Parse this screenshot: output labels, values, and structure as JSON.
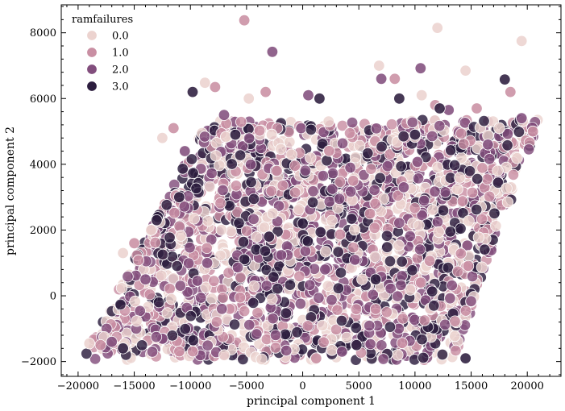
{
  "chart_data": {
    "type": "scatter",
    "xlabel": "principal component 1",
    "ylabel": "principal component 2",
    "xlim": [
      -21500,
      23000
    ],
    "ylim": [
      -2450,
      8850
    ],
    "x_ticks": [
      -20000,
      -15000,
      -10000,
      -5000,
      0,
      5000,
      10000,
      15000,
      20000
    ],
    "x_tick_labels": [
      "−20000",
      "−15000",
      "−10000",
      "−5000",
      "0",
      "5000",
      "10000",
      "15000",
      "20000"
    ],
    "y_ticks": [
      -2000,
      0,
      2000,
      4000,
      6000,
      8000
    ],
    "y_tick_labels": [
      "−2000",
      "0",
      "2000",
      "4000",
      "6000",
      "8000"
    ],
    "grid": false,
    "legend": {
      "title": "ramfailures",
      "placement": "top-left",
      "entries": [
        {
          "label": "0.0",
          "color": "#ecd3cf"
        },
        {
          "label": "1.0",
          "color": "#c98fa3"
        },
        {
          "label": "2.0",
          "color": "#824e7d"
        },
        {
          "label": "3.0",
          "color": "#2c1d3e"
        }
      ]
    },
    "series": [
      {
        "name": "0.0",
        "color": "#ecd3cf",
        "x": [
          -19000,
          -16000,
          -12500,
          -8700,
          -4800,
          -1000,
          2600,
          6800,
          10600,
          14500,
          17500,
          19500,
          12000,
          5300,
          -13500
        ],
        "y": [
          -1450,
          1300,
          4800,
          6480,
          6000,
          4300,
          -1650,
          7000,
          6100,
          6850,
          5100,
          7750,
          8150,
          500,
          2000
        ]
      },
      {
        "name": "1.0",
        "color": "#c98fa3",
        "x": [
          -18000,
          -15000,
          -11500,
          -7800,
          -5200,
          -2300,
          1200,
          4500,
          8200,
          11800,
          15500,
          18500,
          20500,
          -3300,
          6000
        ],
        "y": [
          -1500,
          1600,
          5100,
          6350,
          8380,
          3800,
          -1900,
          3500,
          6600,
          5800,
          5700,
          6200,
          5000,
          6200,
          2500
        ]
      },
      {
        "name": "2.0",
        "color": "#824e7d",
        "x": [
          -17000,
          -14000,
          -10500,
          -7000,
          -2700,
          500,
          3500,
          7000,
          10500,
          13000,
          16500,
          19500,
          -8500,
          9000,
          2000
        ],
        "y": [
          -1400,
          500,
          4400,
          5500,
          7420,
          6100,
          -1700,
          6600,
          6920,
          5650,
          4600,
          5400,
          1000,
          3300,
          800
        ]
      },
      {
        "name": "3.0",
        "color": "#2c1d3e",
        "x": [
          -16000,
          -13000,
          -9800,
          -6000,
          -3000,
          1500,
          4800,
          8600,
          12200,
          14500,
          18000,
          -11000,
          0,
          10000,
          6500
        ],
        "y": [
          -1600,
          2300,
          6200,
          4900,
          1800,
          6000,
          -1500,
          6000,
          5700,
          -1900,
          6580,
          3000,
          2200,
          4900,
          500
        ]
      }
    ]
  }
}
